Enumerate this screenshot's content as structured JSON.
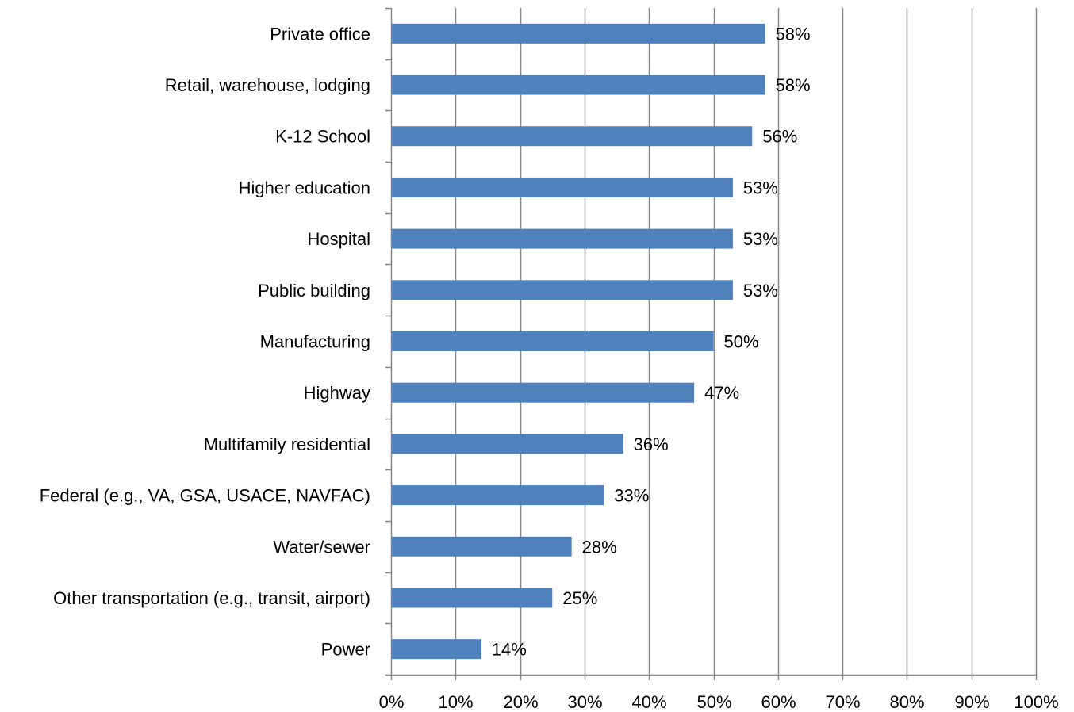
{
  "chart_data": {
    "type": "bar",
    "orientation": "horizontal",
    "title": "",
    "xlabel": "",
    "ylabel": "",
    "categories": [
      "Private office",
      "Retail, warehouse, lodging",
      "K-12 School",
      "Higher education",
      "Hospital",
      "Public building",
      "Manufacturing",
      "Highway",
      "Multifamily residential",
      "Federal (e.g., VA, GSA, USACE, NAVFAC)",
      "Water/sewer",
      "Other transportation (e.g., transit, airport)",
      "Power"
    ],
    "values": [
      58,
      58,
      56,
      53,
      53,
      53,
      50,
      47,
      36,
      33,
      28,
      25,
      14
    ],
    "data_labels": [
      "58%",
      "58%",
      "56%",
      "53%",
      "53%",
      "53%",
      "50%",
      "47%",
      "36%",
      "33%",
      "28%",
      "25%",
      "14%"
    ],
    "xlim": [
      0,
      100
    ],
    "x_ticks": [
      "0%",
      "10%",
      "20%",
      "30%",
      "40%",
      "50%",
      "60%",
      "70%",
      "80%",
      "90%",
      "100%"
    ],
    "grid": "vertical major gridlines",
    "legend": "none",
    "colors": {
      "bar": "#4F81BD",
      "grid": "#868686",
      "axis": "#868686",
      "text": "#000000"
    }
  }
}
